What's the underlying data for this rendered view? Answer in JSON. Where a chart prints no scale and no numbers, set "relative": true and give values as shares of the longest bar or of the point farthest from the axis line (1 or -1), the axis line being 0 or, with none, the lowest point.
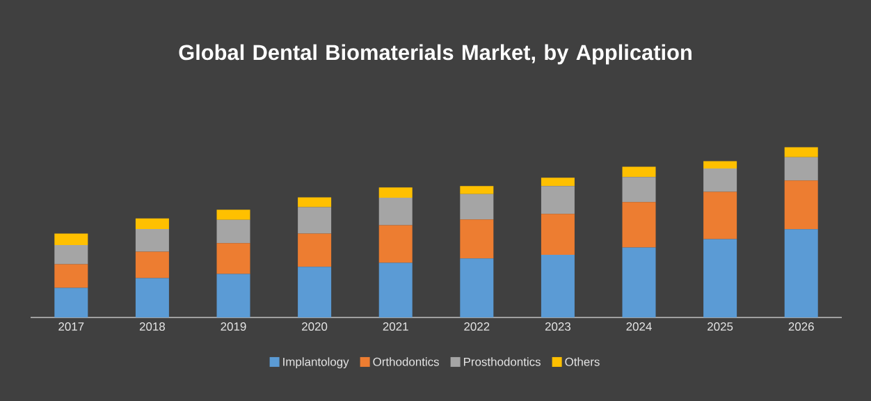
{
  "chart_data": {
    "type": "bar",
    "title": "Global Dental Biomaterials Market, by Application",
    "stacked": true,
    "relative": true,
    "legend": "bottom",
    "categories": [
      "2017",
      "2018",
      "2019",
      "2020",
      "2021",
      "2022",
      "2023",
      "2024",
      "2025",
      "2026"
    ],
    "series": [
      {
        "name": "Implantology",
        "color": "#5b9bd5",
        "values": [
          0.174,
          0.231,
          0.256,
          0.297,
          0.321,
          0.346,
          0.368,
          0.411,
          0.46,
          0.518
        ]
      },
      {
        "name": "Orthodontics",
        "color": "#ed7d31",
        "values": [
          0.139,
          0.155,
          0.18,
          0.196,
          0.221,
          0.229,
          0.24,
          0.267,
          0.278,
          0.286
        ]
      },
      {
        "name": "Prosthodontics",
        "color": "#a5a5a5",
        "values": [
          0.112,
          0.133,
          0.137,
          0.155,
          0.161,
          0.15,
          0.164,
          0.147,
          0.137,
          0.137
        ]
      },
      {
        "name": "Others",
        "color": "#ffc000",
        "values": [
          0.068,
          0.063,
          0.06,
          0.057,
          0.06,
          0.047,
          0.049,
          0.06,
          0.043,
          0.059
        ]
      }
    ]
  }
}
